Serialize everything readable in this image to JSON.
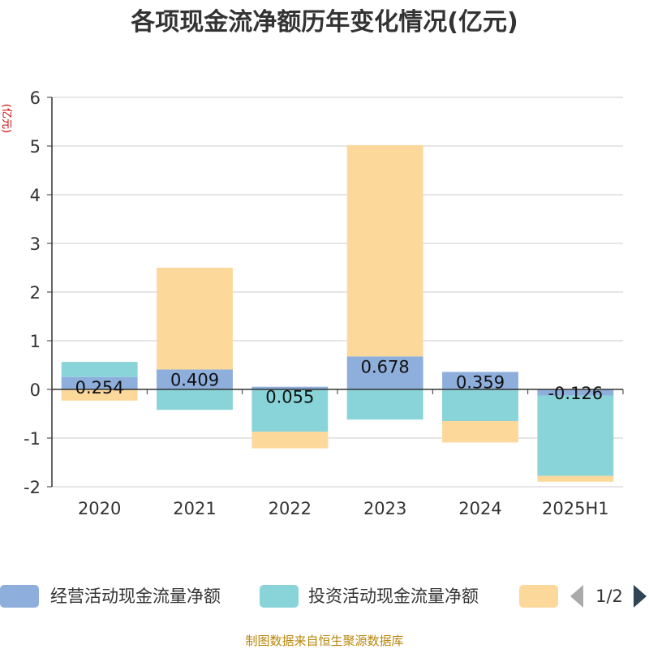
{
  "chart_data": {
    "type": "bar",
    "stacked": true,
    "title": "各项现金流净额历年变化情况(亿元)",
    "unit_label": "(亿元)",
    "categories": [
      "2020",
      "2021",
      "2022",
      "2023",
      "2024",
      "2025H1"
    ],
    "series": [
      {
        "name": "经营活动现金流量净额",
        "color": "#8eaedb",
        "values": [
          0.254,
          0.409,
          0.055,
          0.678,
          0.359,
          -0.126
        ],
        "labels": [
          "0.254",
          "0.409",
          "0.055",
          "0.678",
          "0.359",
          "-0.126"
        ]
      },
      {
        "name": "投资活动现金流量净额",
        "color": "#88d4d8",
        "values": [
          0.31,
          -0.42,
          -0.87,
          -0.62,
          -0.65,
          -1.65
        ]
      },
      {
        "name": "",
        "color": "#fdd89b",
        "values": [
          -0.23,
          2.09,
          -0.34,
          4.34,
          -0.44,
          -0.12
        ]
      }
    ],
    "ylim": [
      -2,
      6
    ],
    "yticks": [
      "6",
      "5",
      "4",
      "3",
      "2",
      "1",
      "0",
      "-1",
      "-2"
    ],
    "grid": true,
    "legend_position": "bottom"
  },
  "legend": {
    "pager": "1/2"
  },
  "source_note": "制图数据来自恒生聚源数据库"
}
